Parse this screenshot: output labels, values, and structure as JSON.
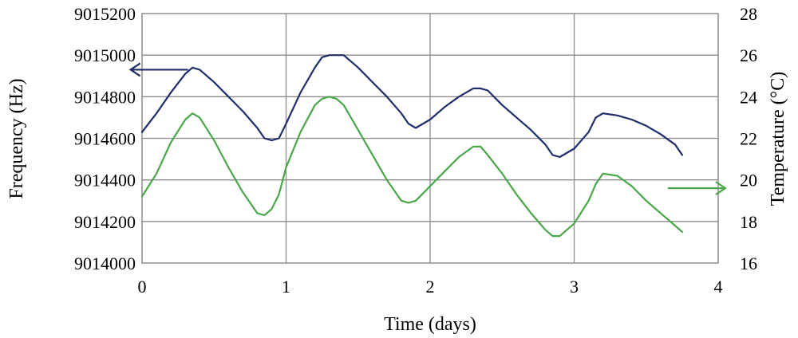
{
  "chart_data": {
    "type": "line",
    "xlabel": "Time (days)",
    "ylabel_left": "Frequency (Hz)",
    "ylabel_right": "Temperature (°C)",
    "xlim": [
      0,
      4
    ],
    "ylim_left": [
      9014000,
      9015200
    ],
    "ylim_right": [
      16,
      28
    ],
    "x_ticks": [
      "0",
      "1",
      "2",
      "3",
      "4"
    ],
    "y_ticks_left": [
      "9014000",
      "9014200",
      "9014400",
      "9014600",
      "9014800",
      "9015000",
      "9015200"
    ],
    "y_ticks_right": [
      "16",
      "18",
      "20",
      "22",
      "24",
      "26",
      "28"
    ],
    "grid": true,
    "series": [
      {
        "axis": "left",
        "color": "#1f2d6b",
        "x": [
          0,
          0.1,
          0.2,
          0.3,
          0.35,
          0.4,
          0.5,
          0.6,
          0.7,
          0.8,
          0.85,
          0.9,
          0.95,
          1.0,
          1.1,
          1.2,
          1.25,
          1.3,
          1.35,
          1.4,
          1.5,
          1.6,
          1.7,
          1.8,
          1.85,
          1.9,
          2.0,
          2.1,
          2.2,
          2.3,
          2.35,
          2.4,
          2.5,
          2.6,
          2.7,
          2.8,
          2.85,
          2.9,
          3.0,
          3.1,
          3.15,
          3.2,
          3.3,
          3.4,
          3.5,
          3.6,
          3.7,
          3.75
        ],
        "y": [
          9014630,
          9014720,
          9014820,
          9014910,
          9014940,
          9014930,
          9014870,
          9014800,
          9014730,
          9014650,
          9014600,
          9014590,
          9014600,
          9014670,
          9014820,
          9014940,
          9014990,
          9015000,
          9015000,
          9015000,
          9014940,
          9014870,
          9014800,
          9014720,
          9014670,
          9014650,
          9014690,
          9014750,
          9014800,
          9014840,
          9014840,
          9014830,
          9014760,
          9014700,
          9014640,
          9014570,
          9014520,
          9014510,
          9014550,
          9014630,
          9014700,
          9014720,
          9014710,
          9014690,
          9014660,
          9014620,
          9014570,
          9014520
        ]
      },
      {
        "axis": "right",
        "color": "#4aa64a",
        "x": [
          0,
          0.1,
          0.2,
          0.3,
          0.35,
          0.4,
          0.5,
          0.6,
          0.7,
          0.8,
          0.85,
          0.9,
          0.95,
          1.0,
          1.1,
          1.2,
          1.25,
          1.3,
          1.35,
          1.4,
          1.5,
          1.6,
          1.7,
          1.8,
          1.85,
          1.9,
          2.0,
          2.1,
          2.2,
          2.3,
          2.35,
          2.4,
          2.5,
          2.6,
          2.7,
          2.8,
          2.85,
          2.9,
          3.0,
          3.1,
          3.15,
          3.2,
          3.3,
          3.4,
          3.5,
          3.6,
          3.7,
          3.75
        ],
        "y": [
          19.2,
          20.3,
          21.8,
          22.9,
          23.2,
          23.0,
          21.9,
          20.6,
          19.4,
          18.4,
          18.3,
          18.6,
          19.3,
          20.6,
          22.3,
          23.6,
          23.9,
          24.0,
          23.9,
          23.6,
          22.4,
          21.2,
          20.0,
          19.0,
          18.9,
          19.0,
          19.7,
          20.4,
          21.1,
          21.6,
          21.6,
          21.2,
          20.3,
          19.3,
          18.4,
          17.6,
          17.3,
          17.3,
          17.9,
          19.0,
          19.8,
          20.3,
          20.2,
          19.7,
          19.0,
          18.4,
          17.8,
          17.5
        ]
      }
    ],
    "annotations": [
      {
        "text": "←",
        "axis": "left",
        "x": 0.12,
        "y": 9014930,
        "color": "#1f2d6b"
      },
      {
        "text": "→",
        "axis": "right",
        "x": 3.85,
        "y": 19.6,
        "color": "#4aa64a"
      }
    ]
  }
}
